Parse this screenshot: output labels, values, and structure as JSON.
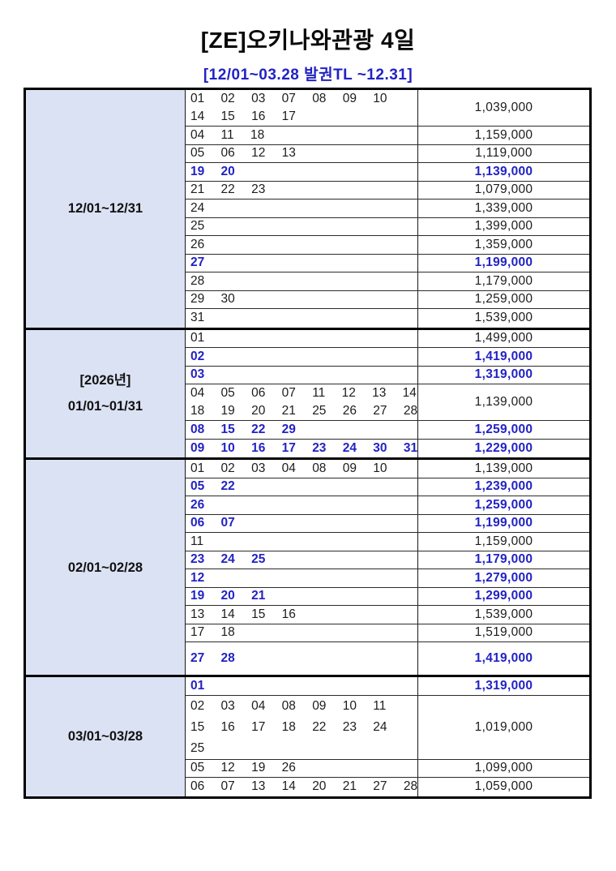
{
  "title": "[ZE]오키나와관광 4일",
  "subtitle": "[12/01~03.28 발권TL ~12.31]",
  "colors": {
    "accent_blue": "#2222c4",
    "label_background": "#dbe2f3",
    "border": "#000000"
  },
  "sections": [
    {
      "label_lines": [
        "12/01~12/31"
      ],
      "rows": [
        {
          "days": [
            "01 02 03 07 08 09 10",
            "14 15 16 17"
          ],
          "price": "1,039,000",
          "highlight": false
        },
        {
          "days": [
            "04 11 18"
          ],
          "price": "1,159,000",
          "highlight": false
        },
        {
          "days": [
            "05 06 12 13"
          ],
          "price": "1,119,000",
          "highlight": false
        },
        {
          "days": [
            "19 20"
          ],
          "price": "1,139,000",
          "highlight": true
        },
        {
          "days": [
            "21 22 23"
          ],
          "price": "1,079,000",
          "highlight": false
        },
        {
          "days": [
            "24"
          ],
          "price": "1,339,000",
          "highlight": false
        },
        {
          "days": [
            "25"
          ],
          "price": "1,399,000",
          "highlight": false
        },
        {
          "days": [
            "26"
          ],
          "price": "1,359,000",
          "highlight": false
        },
        {
          "days": [
            "27"
          ],
          "price": "1,199,000",
          "highlight": true
        },
        {
          "days": [
            "28"
          ],
          "price": "1,179,000",
          "highlight": false
        },
        {
          "days": [
            "29 30"
          ],
          "price": "1,259,000",
          "highlight": false
        },
        {
          "days": [
            "31"
          ],
          "price": "1,539,000",
          "highlight": false
        }
      ]
    },
    {
      "label_lines": [
        "[2026년]",
        "01/01~01/31"
      ],
      "rows": [
        {
          "days": [
            "01"
          ],
          "price": "1,499,000",
          "highlight": false
        },
        {
          "days": [
            "02"
          ],
          "price": "1,419,000",
          "highlight": true
        },
        {
          "days": [
            "03"
          ],
          "price": "1,319,000",
          "highlight": true
        },
        {
          "days": [
            "04 05 06 07 11 12 13 14",
            "18 19 20 21 25 26 27 28"
          ],
          "price": "1,139,000",
          "highlight": false
        },
        {
          "days": [
            "08 15 22 29"
          ],
          "price": "1,259,000",
          "highlight": true
        },
        {
          "days": [
            "09 10 16 17 23 24 30 31"
          ],
          "price": "1,229,000",
          "highlight": true
        }
      ]
    },
    {
      "label_lines": [
        "02/01~02/28"
      ],
      "rows": [
        {
          "days": [
            "01 02 03 04 08 09 10"
          ],
          "price": "1,139,000",
          "highlight": false
        },
        {
          "days": [
            "05 22"
          ],
          "price": "1,239,000",
          "highlight": true
        },
        {
          "days": [
            "26"
          ],
          "price": "1,259,000",
          "highlight": true
        },
        {
          "days": [
            "06 07"
          ],
          "price": "1,199,000",
          "highlight": true
        },
        {
          "days": [
            "11"
          ],
          "price": "1,159,000",
          "highlight": false
        },
        {
          "days": [
            "23 24 25"
          ],
          "price": "1,179,000",
          "highlight": true
        },
        {
          "days": [
            "12"
          ],
          "price": "1,279,000",
          "highlight": true
        },
        {
          "days": [
            "19 20 21"
          ],
          "price": "1,299,000",
          "highlight": true
        },
        {
          "days": [
            "13 14 15 16"
          ],
          "price": "1,539,000",
          "highlight": false
        },
        {
          "days": [
            "17 18"
          ],
          "price": "1,519,000",
          "highlight": false
        },
        {
          "days": [
            "27 28"
          ],
          "price": "1,419,000",
          "highlight": true,
          "tall": true
        }
      ]
    },
    {
      "label_lines": [
        "03/01~03/28"
      ],
      "rows": [
        {
          "days": [
            "01"
          ],
          "price": "1,319,000",
          "highlight": true
        },
        {
          "days": [
            "02 03 04 08 09 10 11",
            "15 16 17 18 22 23 24",
            "25"
          ],
          "price": "1,019,000",
          "highlight": false
        },
        {
          "days": [
            "05 12 19 26"
          ],
          "price": "1,099,000",
          "highlight": false
        },
        {
          "days": [
            "06 07 13 14 20 21 27 28"
          ],
          "price": "1,059,000",
          "highlight": false
        }
      ]
    }
  ]
}
